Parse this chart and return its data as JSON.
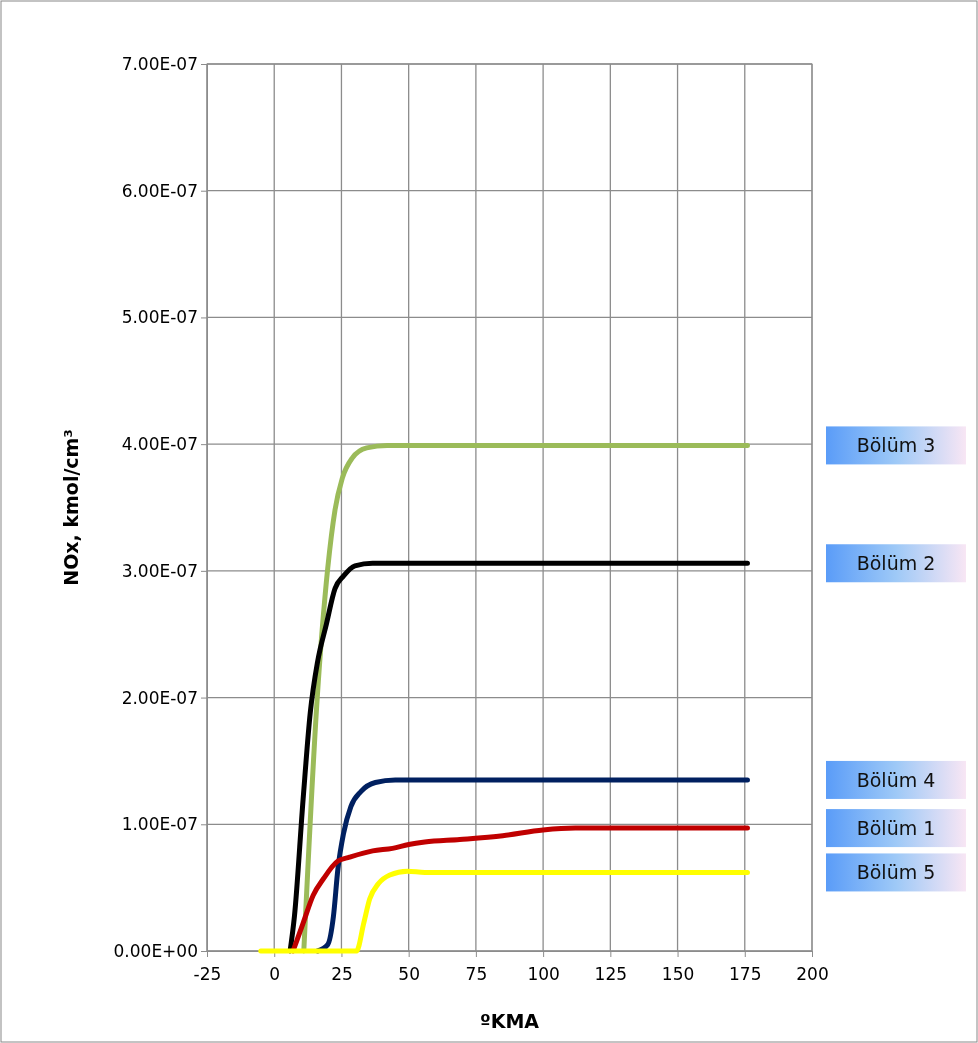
{
  "chart_data": {
    "type": "line",
    "xlabel": "ºKMA",
    "ylabel": "NOx, kmol/cm³",
    "xlim": [
      -25,
      200
    ],
    "xticks": [
      -25,
      0,
      25,
      50,
      75,
      100,
      125,
      150,
      175,
      200
    ],
    "ylim": [
      0,
      7e-07
    ],
    "yticks": [
      {
        "value": 0,
        "label": "0.00E+00"
      },
      {
        "value": 1e-07,
        "label": "1.00E-07"
      },
      {
        "value": 2e-07,
        "label": "2.00E-07"
      },
      {
        "value": 3e-07,
        "label": "3.00E-07"
      },
      {
        "value": 4e-07,
        "label": "4.00E-07"
      },
      {
        "value": 5e-07,
        "label": "5.00E-07"
      },
      {
        "value": 6e-07,
        "label": "6.00E-07"
      },
      {
        "value": 7e-07,
        "label": "7.00E-07"
      }
    ],
    "grid": true,
    "line_style": "solid",
    "marker": "none",
    "series": [
      {
        "name": "Bölüm 3",
        "color": "#9bbb59",
        "x": [
          11,
          16,
          19.9,
          22.6,
          25.3,
          29,
          34.4,
          42,
          60,
          176
        ],
        "values": [
          0,
          2e-07,
          3.02e-07,
          3.48e-07,
          3.73e-07,
          3.89e-07,
          3.97e-07,
          3.99e-07,
          3.99e-07,
          3.99e-07
        ]
      },
      {
        "name": "Bölüm 2",
        "color": "#000000",
        "x": [
          5.9,
          7.5,
          10.75,
          13.4,
          16.1,
          19.4,
          22.6,
          25.8,
          30,
          36.6,
          60,
          176
        ],
        "values": [
          0,
          2.7e-08,
          1.2e-07,
          1.88e-07,
          2.28e-07,
          2.58e-07,
          2.86e-07,
          2.96e-07,
          3.04e-07,
          3.06e-07,
          3.06e-07,
          3.06e-07
        ]
      },
      {
        "name": "Bölüm 4",
        "color": "#002060",
        "x": [
          16.1,
          19.9,
          22,
          23.7,
          25.8,
          28.5,
          32.3,
          37.6,
          45,
          176
        ],
        "values": [
          0,
          5e-09,
          2.7e-08,
          6.5e-08,
          9.3e-08,
          1.14e-07,
          1.26e-07,
          1.33e-07,
          1.35e-07,
          1.35e-07
        ]
      },
      {
        "name": "Bölüm 1",
        "color": "#c00000",
        "x": [
          7,
          10.75,
          14.5,
          18.3,
          23.7,
          28,
          36.6,
          44,
          50,
          56,
          69,
          85,
          100,
          112,
          176
        ],
        "values": [
          0,
          2.2e-08,
          4.4e-08,
          5.7e-08,
          7.1e-08,
          7.4e-08,
          7.9e-08,
          8.1e-08,
          8.4e-08,
          8.6e-08,
          8.8e-08,
          9.1e-08,
          9.55e-08,
          9.7e-08,
          9.7e-08
        ]
      },
      {
        "name": "Bölüm 5",
        "color": "#ffff00",
        "x": [
          -5,
          26.9,
          30.6,
          33.3,
          35.5,
          38.7,
          43,
          49.5,
          56,
          176
        ],
        "values": [
          0,
          0,
          0,
          2.2e-08,
          4.1e-08,
          5.3e-08,
          6e-08,
          6.3e-08,
          6.2e-08,
          6.2e-08
        ]
      }
    ]
  }
}
